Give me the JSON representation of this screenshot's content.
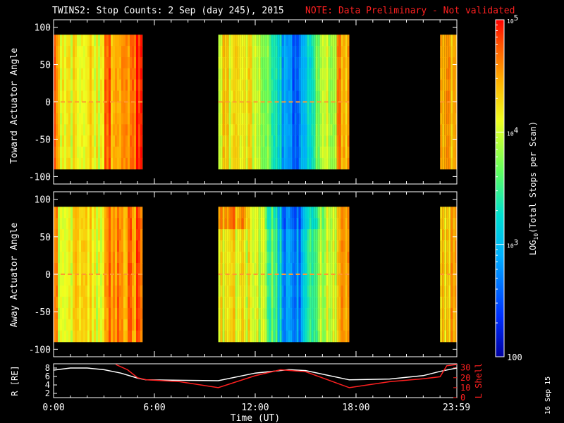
{
  "title": "TWINS2: Stop Counts:  2 Sep (day 245), 2015",
  "note": "NOTE: Data Preliminary - Not validated",
  "stamp": "16 Sep 15",
  "colors": {
    "note": "#ff2020",
    "lshell": "#ff2020",
    "radius": "#ffffff"
  },
  "chart_data": [
    {
      "type": "heatmap",
      "ylabel": "Toward Actuator Angle",
      "yticks": [
        "100",
        "50",
        "0",
        "-50",
        "-100"
      ],
      "ylim": [
        -110,
        110
      ],
      "xlim": [
        0,
        24
      ],
      "data_ylim": [
        -90,
        90
      ],
      "segments": [
        [
          0,
          5.3
        ],
        [
          9.8,
          17.6
        ],
        [
          23.0,
          24.0
        ]
      ],
      "profile": "toward"
    },
    {
      "type": "heatmap",
      "ylabel": "Away Actuator Angle",
      "yticks": [
        "100",
        "50",
        "0",
        "-50",
        "-100"
      ],
      "ylim": [
        -110,
        110
      ],
      "xlim": [
        0,
        24
      ],
      "data_ylim": [
        -90,
        90
      ],
      "segments": [
        [
          0,
          5.3
        ],
        [
          9.8,
          17.6
        ],
        [
          23.0,
          24.0
        ]
      ],
      "profile": "away"
    },
    {
      "type": "line",
      "ylabel": "R [RE]",
      "y2label": "L Shell",
      "yticks": [
        "8",
        "6",
        "4",
        "2"
      ],
      "y2ticks": [
        "30",
        "20",
        "10",
        "0"
      ],
      "ylim": [
        1,
        9
      ],
      "y2lim": [
        0,
        34
      ],
      "xlabel": "Time (UT)",
      "xticks": [
        {
          "x": 0,
          "label": "0:00"
        },
        {
          "x": 6,
          "label": "6:00"
        },
        {
          "x": 12,
          "label": "12:00"
        },
        {
          "x": 18,
          "label": "18:00"
        },
        {
          "x": 23.98,
          "label": "23:59"
        }
      ],
      "series": [
        {
          "axis": "left",
          "x": [
            0,
            1,
            2,
            3,
            4,
            5,
            5.5,
            9.8,
            12,
            14,
            15,
            17.6,
            20,
            22,
            23,
            24
          ],
          "y": [
            7.5,
            8.0,
            8.0,
            7.6,
            6.8,
            5.6,
            5.2,
            5.0,
            6.8,
            7.6,
            7.4,
            5.2,
            5.4,
            6.2,
            7.2,
            8.0
          ]
        },
        {
          "axis": "right",
          "x": [
            3.7,
            4.4,
            5.0,
            5.5,
            7.5,
            9.8,
            12,
            13.5,
            15,
            17.6,
            20,
            22,
            23,
            23.4,
            24
          ],
          "y": [
            34,
            28,
            20,
            18,
            16,
            10,
            22,
            28,
            26,
            10,
            16,
            19,
            21,
            32,
            34
          ]
        }
      ]
    }
  ],
  "colorbar": {
    "label": "LOG10(Total Stops per Scan)",
    "ticks": [
      "10^5",
      "10^4",
      "10^3",
      "100"
    ],
    "range": [
      100,
      100000
    ],
    "scale": "log"
  }
}
